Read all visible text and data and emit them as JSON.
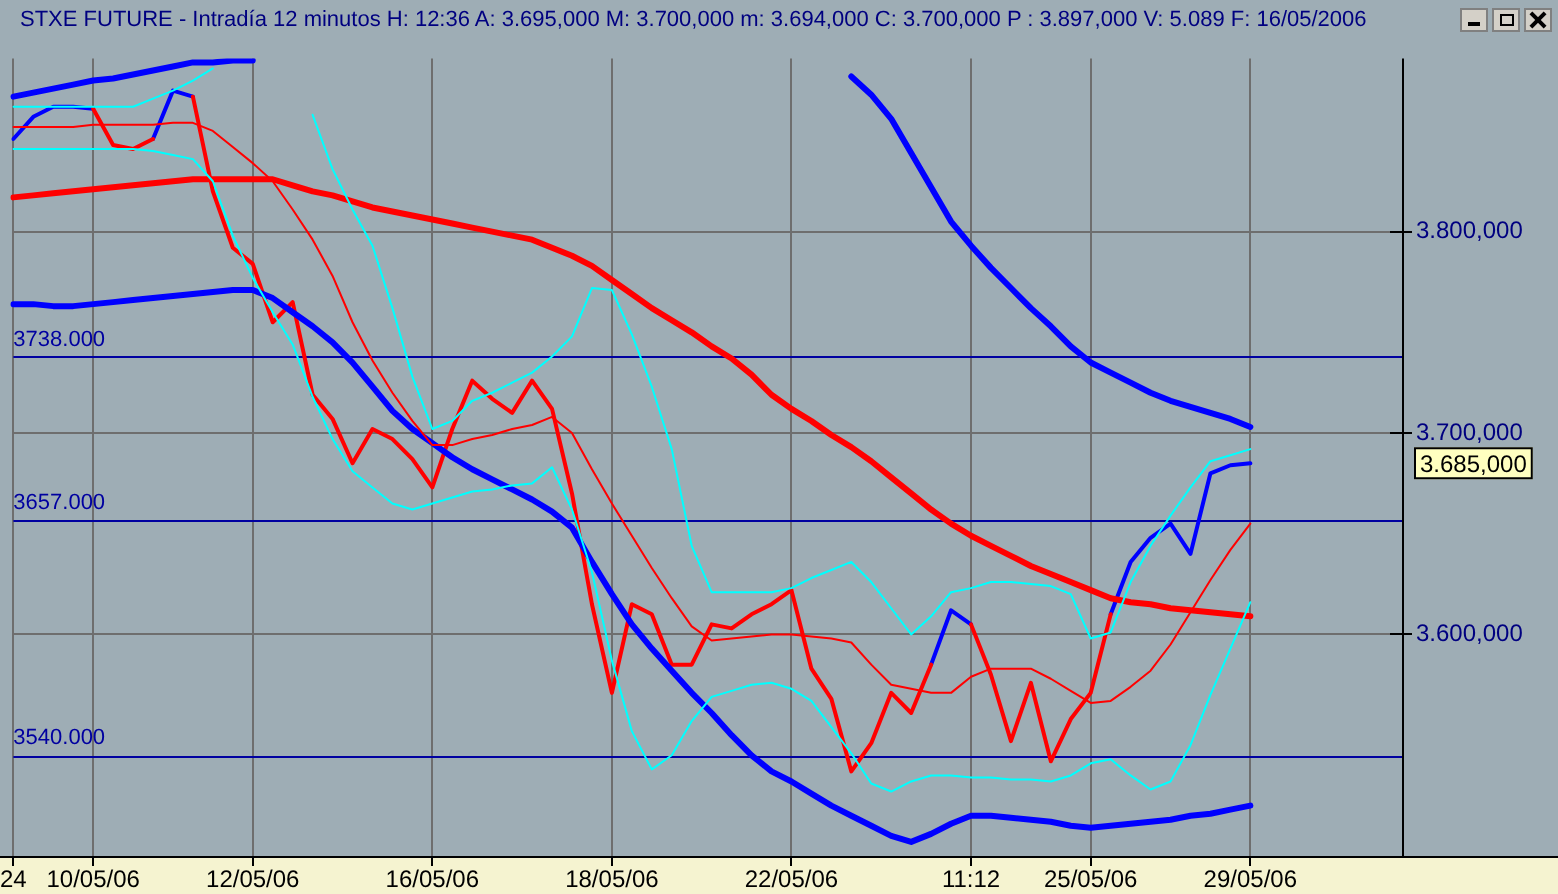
{
  "chart_data": {
    "type": "line",
    "title": "STXE FUTURE - Intradía 12 minutos H: 12:36 A: 3.695,000 M: 3.700,000 m: 3.694,000 C: 3.700,000 P : 3.897,000 V: 5.089 F: 16/05/2006",
    "categories": [
      "24",
      null,
      null,
      null,
      "10/05/06",
      null,
      null,
      null,
      null,
      null,
      null,
      null,
      "12/05/06",
      null,
      null,
      null,
      null,
      null,
      null,
      null,
      null,
      "16/05/06",
      null,
      null,
      null,
      null,
      null,
      null,
      null,
      null,
      "18/05/06",
      null,
      null,
      null,
      null,
      null,
      null,
      null,
      null,
      "22/05/06",
      null,
      null,
      null,
      null,
      null,
      null,
      null,
      null,
      "11:12",
      null,
      null,
      null,
      null,
      null,
      "25/05/06",
      null,
      null,
      null,
      null,
      null,
      null,
      null,
      "29/05/06",
      null,
      null,
      null,
      null,
      null,
      null,
      null
    ],
    "ylim": [
      3490,
      3886
    ],
    "yticks": [
      {
        "value": 3600,
        "label": "3.600,000"
      },
      {
        "value": 3700,
        "label": "3.700,000"
      },
      {
        "value": 3800,
        "label": "3.800,000"
      }
    ],
    "grid": true,
    "legend": false,
    "marker": "none",
    "line_style": "solid",
    "ref_lines": [
      {
        "axis": "y",
        "value": 3738,
        "label": "3738.000",
        "color": "#0000a0"
      },
      {
        "axis": "y",
        "value": 3657,
        "label": "3657.000",
        "color": "#0000a0"
      },
      {
        "axis": "y",
        "value": 3540,
        "label": "3540.000",
        "color": "#0000a0"
      }
    ],
    "annotations": [
      "3.685,000"
    ],
    "series": [
      {
        "color": "#0000ff",
        "values": [
          3846,
          3857,
          3862,
          3862,
          3861,
          null,
          null,
          3846,
          3870,
          3867,
          null,
          null,
          null,
          null,
          null,
          null,
          null,
          null,
          null,
          null,
          null,
          null,
          null,
          null,
          null,
          null,
          null,
          null,
          null,
          null,
          null,
          null,
          null,
          null,
          null,
          null,
          null,
          null,
          null,
          null,
          null,
          null,
          null,
          null,
          null,
          null,
          3585,
          3612,
          3605,
          null,
          null,
          null,
          null,
          null,
          null,
          3610,
          3636,
          3648,
          3655,
          3640,
          3680,
          3684,
          3685,
          null,
          null,
          null,
          null,
          null,
          null,
          null
        ]
      },
      {
        "color": "#ff0000",
        "values": [
          null,
          null,
          null,
          null,
          3861,
          3843,
          3841,
          3846,
          null,
          3867,
          3820,
          3792,
          3784,
          3755,
          3765,
          3719,
          3707,
          3685,
          3702,
          3697,
          3687,
          3673,
          3702,
          3726,
          3717,
          3710,
          3726,
          3712,
          3670,
          3615,
          3571,
          3615,
          3610,
          3585,
          3585,
          3605,
          3603,
          3610,
          3615,
          3622,
          3583,
          3568,
          3532,
          3546,
          3571,
          3561,
          3585,
          null,
          3605,
          3580,
          3547,
          3576,
          3537,
          3558,
          3571,
          3610,
          null,
          null,
          null,
          null,
          null,
          null,
          null,
          null,
          null,
          null,
          null,
          null,
          null,
          null
        ]
      },
      {
        "color": "#0000ff",
        "values": [
          3867,
          3869,
          3871,
          3873,
          3875,
          3876,
          3878,
          3880,
          3882,
          3884,
          3884,
          3885,
          3885,
          null,
          null,
          null,
          null,
          null,
          null,
          null,
          null,
          null,
          null,
          null,
          null,
          null,
          null,
          null,
          null,
          null,
          null,
          null,
          null,
          null,
          null,
          null,
          null,
          null,
          null,
          null,
          null,
          null,
          3877,
          3868,
          3856,
          3839,
          3822,
          3805,
          3793,
          3782,
          3772,
          3762,
          3753,
          3743,
          3735,
          3730,
          3725,
          3720,
          3716,
          3713,
          3710,
          3707,
          3703,
          null,
          null,
          null,
          null,
          null,
          null,
          null
        ]
      },
      {
        "color": "#0000ff",
        "values": [
          3764,
          3764,
          3763,
          3763,
          3764,
          3765,
          3766,
          3767,
          3768,
          3769,
          3770,
          3771,
          3771,
          3767,
          3760,
          3753,
          3745,
          3735,
          3723,
          3711,
          3702,
          3695,
          3688,
          3682,
          3677,
          3672,
          3667,
          3661,
          3653,
          3636,
          3620,
          3605,
          3593,
          3582,
          3571,
          3561,
          3550,
          3540,
          3532,
          3527,
          3521,
          3515,
          3510,
          3505,
          3500,
          3497,
          3501,
          3506,
          3510,
          3510,
          3509,
          3508,
          3507,
          3505,
          3504,
          3505,
          3506,
          3507,
          3508,
          3510,
          3511,
          3513,
          3515,
          null,
          null,
          null,
          null,
          null,
          null,
          null
        ]
      },
      {
        "color": "#ff0000",
        "values": [
          3817,
          3818,
          3819,
          3820,
          3821,
          3822,
          3823,
          3824,
          3825,
          3826,
          3826,
          3826,
          3826,
          3826,
          3823,
          3820,
          3818,
          3815,
          3812,
          3810,
          3808,
          3806,
          3804,
          3802,
          3800,
          3798,
          3796,
          3792,
          3788,
          3783,
          3776,
          3769,
          3762,
          3756,
          3750,
          3743,
          3737,
          3729,
          3719,
          3712,
          3706,
          3699,
          3693,
          3686,
          3678,
          3670,
          3662,
          3655,
          3649,
          3644,
          3639,
          3634,
          3630,
          3626,
          3622,
          3618,
          3616,
          3615,
          3613,
          3612,
          3611,
          3610,
          3609,
          null,
          null,
          null,
          null,
          null,
          null,
          null
        ]
      },
      {
        "color": "#ff0000",
        "values": [
          3852,
          3852,
          3852,
          3852,
          3853,
          3853,
          3853,
          3853,
          3854,
          3854,
          3850,
          3842,
          3834,
          3825,
          3811,
          3796,
          3778,
          3755,
          3736,
          3720,
          3706,
          3694,
          3694,
          3697,
          3699,
          3702,
          3704,
          3708,
          3700,
          3682,
          3665,
          3649,
          3633,
          3618,
          3604,
          3597,
          3598,
          3599,
          3600,
          3600,
          3599,
          3598,
          3596,
          3585,
          3575,
          3573,
          3571,
          3571,
          3579,
          3583,
          3583,
          3583,
          3578,
          3572,
          3566,
          3567,
          3574,
          3582,
          3595,
          3611,
          3627,
          3642,
          3655,
          null,
          null,
          null,
          null,
          null,
          null,
          null
        ]
      },
      {
        "color": "#00ffff",
        "values": [
          3862,
          3862,
          3862,
          3862,
          3862,
          3862,
          3862,
          3866,
          3870,
          3875,
          3881,
          null,
          null,
          null,
          null,
          3858,
          3831,
          3811,
          3793,
          3762,
          3728,
          3702,
          3706,
          3716,
          3720,
          3725,
          3730,
          3738,
          3748,
          3772,
          3771,
          3749,
          3723,
          3692,
          3644,
          3621,
          3621,
          3621,
          3621,
          3623,
          3628,
          3632,
          3636,
          3626,
          3613,
          3600,
          3609,
          3621,
          3623,
          3626,
          3626,
          3625,
          3624,
          3620,
          3598,
          3601,
          3626,
          3644,
          3659,
          3673,
          3686,
          3689,
          3692,
          null,
          null,
          null,
          null,
          null,
          null,
          null
        ]
      },
      {
        "color": "#00ffff",
        "values": [
          3841,
          3841,
          3841,
          3841,
          3841,
          3841,
          3841,
          3840,
          3838,
          3836,
          3825,
          3798,
          3777,
          3760,
          3744,
          3718,
          3697,
          3681,
          3673,
          3665,
          3662,
          3665,
          3668,
          3671,
          3672,
          3674,
          3675,
          3683,
          3662,
          3631,
          3587,
          3552,
          3533,
          3540,
          3557,
          3569,
          3572,
          3575,
          3576,
          3573,
          3567,
          3554,
          3541,
          3526,
          3522,
          3527,
          3530,
          3530,
          3529,
          3529,
          3528,
          3528,
          3527,
          3530,
          3536,
          3538,
          3530,
          3523,
          3527,
          3545,
          3570,
          3593,
          3616,
          null,
          null,
          null,
          null,
          null,
          null,
          null
        ]
      }
    ]
  }
}
